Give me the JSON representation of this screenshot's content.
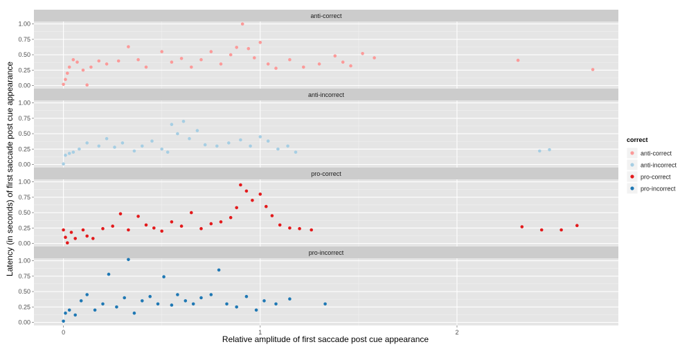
{
  "chart_data": {
    "type": "scatter",
    "xlabel": "Relative amplitude of first saccade post cue appearance",
    "ylabel": "Latency (in seconds) of first saccade post cue appearance",
    "xlim": [
      -0.15,
      2.82
    ],
    "ylim": [
      -0.05,
      1.04
    ],
    "x_ticks": [
      0,
      1,
      2
    ],
    "x_tick_labels": [
      "0",
      "1",
      "2"
    ],
    "y_ticks": [
      0,
      0.25,
      0.5,
      0.75,
      1.0
    ],
    "y_tick_labels": [
      "0.00",
      "0.25",
      "0.50",
      "0.75",
      "1.00"
    ],
    "grid": true,
    "legend": {
      "title": "correct",
      "position": "right",
      "entries": [
        "anti-correct",
        "anti-incorrect",
        "pro-correct",
        "pro-incorrect"
      ]
    },
    "colors": {
      "anti-correct": "#fb9a99",
      "anti-incorrect": "#a6cee3",
      "pro-correct": "#e31a1c",
      "pro-incorrect": "#1f78b4",
      "panel_bg": "#e5e5e5",
      "strip_bg": "#cccccc"
    },
    "series": [
      {
        "name": "anti-correct",
        "points": [
          [
            0.0,
            0.02
          ],
          [
            0.01,
            0.1
          ],
          [
            0.02,
            0.2
          ],
          [
            0.03,
            0.3
          ],
          [
            0.05,
            0.42
          ],
          [
            0.07,
            0.38
          ],
          [
            0.1,
            0.25
          ],
          [
            0.12,
            0.01
          ],
          [
            0.14,
            0.3
          ],
          [
            0.18,
            0.4
          ],
          [
            0.22,
            0.35
          ],
          [
            0.28,
            0.4
          ],
          [
            0.33,
            0.63
          ],
          [
            0.38,
            0.42
          ],
          [
            0.42,
            0.3
          ],
          [
            0.5,
            0.55
          ],
          [
            0.55,
            0.38
          ],
          [
            0.6,
            0.44
          ],
          [
            0.65,
            0.3
          ],
          [
            0.7,
            0.42
          ],
          [
            0.75,
            0.55
          ],
          [
            0.8,
            0.35
          ],
          [
            0.85,
            0.5
          ],
          [
            0.88,
            0.62
          ],
          [
            0.91,
            1.0
          ],
          [
            0.94,
            0.6
          ],
          [
            0.97,
            0.45
          ],
          [
            1.0,
            0.7
          ],
          [
            1.04,
            0.35
          ],
          [
            1.08,
            0.28
          ],
          [
            1.15,
            0.42
          ],
          [
            1.22,
            0.3
          ],
          [
            1.3,
            0.35
          ],
          [
            1.38,
            0.48
          ],
          [
            1.42,
            0.38
          ],
          [
            1.46,
            0.32
          ],
          [
            1.52,
            0.52
          ],
          [
            1.58,
            0.45
          ],
          [
            2.31,
            0.41
          ],
          [
            2.69,
            0.26
          ]
        ]
      },
      {
        "name": "anti-incorrect",
        "points": [
          [
            0.0,
            0.01
          ],
          [
            0.01,
            0.15
          ],
          [
            0.03,
            0.18
          ],
          [
            0.05,
            0.2
          ],
          [
            0.08,
            0.25
          ],
          [
            0.12,
            0.35
          ],
          [
            0.18,
            0.3
          ],
          [
            0.22,
            0.42
          ],
          [
            0.26,
            0.28
          ],
          [
            0.3,
            0.35
          ],
          [
            0.36,
            0.22
          ],
          [
            0.4,
            0.3
          ],
          [
            0.45,
            0.38
          ],
          [
            0.5,
            0.25
          ],
          [
            0.53,
            0.2
          ],
          [
            0.55,
            0.65
          ],
          [
            0.58,
            0.5
          ],
          [
            0.61,
            0.7
          ],
          [
            0.64,
            0.42
          ],
          [
            0.68,
            0.55
          ],
          [
            0.72,
            0.32
          ],
          [
            0.78,
            0.3
          ],
          [
            0.84,
            0.35
          ],
          [
            0.9,
            0.4
          ],
          [
            0.95,
            0.3
          ],
          [
            1.0,
            0.45
          ],
          [
            1.04,
            0.38
          ],
          [
            1.09,
            0.25
          ],
          [
            1.14,
            0.3
          ],
          [
            1.18,
            0.2
          ],
          [
            2.42,
            0.22
          ],
          [
            2.47,
            0.24
          ]
        ]
      },
      {
        "name": "pro-correct",
        "points": [
          [
            0.0,
            0.22
          ],
          [
            0.01,
            0.1
          ],
          [
            0.02,
            0.01
          ],
          [
            0.04,
            0.18
          ],
          [
            0.06,
            0.08
          ],
          [
            0.1,
            0.22
          ],
          [
            0.12,
            0.12
          ],
          [
            0.15,
            0.08
          ],
          [
            0.2,
            0.24
          ],
          [
            0.25,
            0.28
          ],
          [
            0.29,
            0.48
          ],
          [
            0.33,
            0.22
          ],
          [
            0.38,
            0.44
          ],
          [
            0.42,
            0.3
          ],
          [
            0.46,
            0.25
          ],
          [
            0.5,
            0.2
          ],
          [
            0.55,
            0.35
          ],
          [
            0.6,
            0.28
          ],
          [
            0.65,
            0.5
          ],
          [
            0.7,
            0.24
          ],
          [
            0.75,
            0.32
          ],
          [
            0.8,
            0.35
          ],
          [
            0.85,
            0.42
          ],
          [
            0.88,
            0.58
          ],
          [
            0.9,
            0.95
          ],
          [
            0.93,
            0.85
          ],
          [
            0.96,
            0.7
          ],
          [
            1.0,
            0.8
          ],
          [
            1.03,
            0.6
          ],
          [
            1.06,
            0.45
          ],
          [
            1.1,
            0.3
          ],
          [
            1.15,
            0.25
          ],
          [
            1.2,
            0.24
          ],
          [
            1.26,
            0.22
          ],
          [
            2.33,
            0.27
          ],
          [
            2.43,
            0.22
          ],
          [
            2.53,
            0.22
          ],
          [
            2.61,
            0.29
          ]
        ]
      },
      {
        "name": "pro-incorrect",
        "points": [
          [
            0.0,
            0.02
          ],
          [
            0.01,
            0.15
          ],
          [
            0.03,
            0.2
          ],
          [
            0.06,
            0.12
          ],
          [
            0.09,
            0.35
          ],
          [
            0.12,
            0.45
          ],
          [
            0.16,
            0.2
          ],
          [
            0.2,
            0.3
          ],
          [
            0.23,
            0.78
          ],
          [
            0.27,
            0.25
          ],
          [
            0.31,
            0.4
          ],
          [
            0.33,
            1.02
          ],
          [
            0.36,
            0.15
          ],
          [
            0.4,
            0.35
          ],
          [
            0.44,
            0.42
          ],
          [
            0.48,
            0.3
          ],
          [
            0.51,
            0.74
          ],
          [
            0.55,
            0.28
          ],
          [
            0.58,
            0.45
          ],
          [
            0.62,
            0.35
          ],
          [
            0.66,
            0.3
          ],
          [
            0.7,
            0.4
          ],
          [
            0.75,
            0.45
          ],
          [
            0.79,
            0.85
          ],
          [
            0.83,
            0.3
          ],
          [
            0.88,
            0.25
          ],
          [
            0.93,
            0.42
          ],
          [
            0.98,
            0.2
          ],
          [
            1.02,
            0.35
          ],
          [
            1.08,
            0.3
          ],
          [
            1.15,
            0.38
          ],
          [
            1.33,
            0.3
          ]
        ]
      }
    ]
  }
}
